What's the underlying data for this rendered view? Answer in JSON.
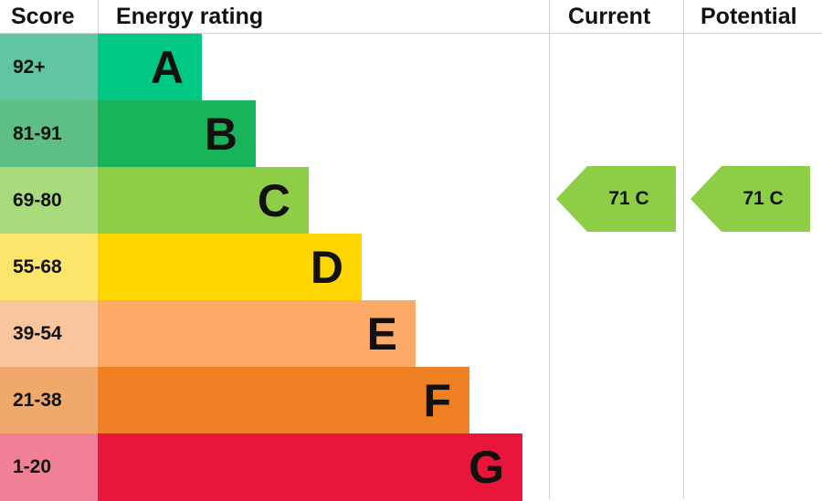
{
  "chart_data": {
    "type": "bar",
    "headers": {
      "score": "Score",
      "rating": "Energy rating",
      "current": "Current",
      "potential": "Potential"
    },
    "bands": [
      {
        "letter": "A",
        "range": "92+",
        "color": "#00c781",
        "score_color": "#5fc6a1"
      },
      {
        "letter": "B",
        "range": "81-91",
        "color": "#19b459",
        "score_color": "#5dbf85"
      },
      {
        "letter": "C",
        "range": "69-80",
        "color": "#8dce46",
        "score_color": "#a9da7c"
      },
      {
        "letter": "D",
        "range": "55-68",
        "color": "#ffd500",
        "score_color": "#fde46a"
      },
      {
        "letter": "E",
        "range": "39-54",
        "color": "#fcaa65",
        "score_color": "#f9c59c"
      },
      {
        "letter": "F",
        "range": "21-38",
        "color": "#ef8023",
        "score_color": "#f0a86b"
      },
      {
        "letter": "G",
        "range": "1-20",
        "color": "#e9153b",
        "score_color": "#ef8096"
      }
    ],
    "current": {
      "value": 71,
      "band": "C",
      "label": "71  C",
      "color": "#8dce46"
    },
    "potential": {
      "value": 71,
      "band": "C",
      "label": "71  C",
      "color": "#8dce46"
    }
  }
}
